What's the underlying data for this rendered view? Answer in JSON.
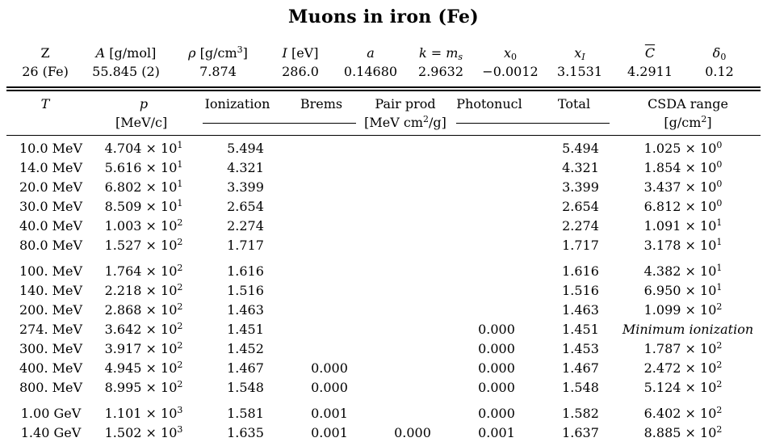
{
  "title": "Muons in iron (Fe)",
  "params": {
    "headers": {
      "z": "Z",
      "a_sym": "A",
      "a_unit": "[g/mol]",
      "rho_sym": "ρ",
      "rho_unit_pre": "[g/cm",
      "rho_unit_exp": "3",
      "rho_unit_post": "]",
      "i_sym": "I",
      "i_unit": "[eV]",
      "a_small": "a",
      "k_sym": "k",
      "k_eq": " = ",
      "k_m": "m",
      "k_sub": "s",
      "x0": "x",
      "x0_sub": "0",
      "xi": "x",
      "xi_sub": "I",
      "cbar": "C",
      "delta": "δ",
      "delta_sub": "0"
    },
    "values": {
      "z": "26 (Fe)",
      "a": "55.845 (2)",
      "rho": "7.874",
      "i": "286.0",
      "a_small": "0.14680",
      "k": "2.9632",
      "x0": "−0.0012",
      "xi": "3.1531",
      "cbar": "4.2911",
      "delta0": "0.12"
    }
  },
  "table": {
    "headers": {
      "t": "T",
      "p": "p",
      "p_unit": "[MeV/c]",
      "ionization": "Ionization",
      "brems": "Brems",
      "pair": "Pair prod",
      "photonucl": "Photonucl",
      "total": "Total",
      "csda": "CSDA range",
      "loss_unit_pre": "[MeV cm",
      "loss_unit_exp": "2",
      "loss_unit_post": "/g]",
      "csda_unit_pre": "[g/cm",
      "csda_unit_exp": "2",
      "csda_unit_post": "]"
    },
    "times": "×",
    "rows": [
      {
        "t": "10.0 MeV",
        "p_m": "4.704",
        "p_e": "1",
        "ion": "5.494",
        "brems": "",
        "pair": "",
        "photo": "",
        "total": "5.494",
        "csda_m": "1.025",
        "csda_e": "0",
        "note": ""
      },
      {
        "t": "14.0 MeV",
        "p_m": "5.616",
        "p_e": "1",
        "ion": "4.321",
        "brems": "",
        "pair": "",
        "photo": "",
        "total": "4.321",
        "csda_m": "1.854",
        "csda_e": "0",
        "note": ""
      },
      {
        "t": "20.0 MeV",
        "p_m": "6.802",
        "p_e": "1",
        "ion": "3.399",
        "brems": "",
        "pair": "",
        "photo": "",
        "total": "3.399",
        "csda_m": "3.437",
        "csda_e": "0",
        "note": ""
      },
      {
        "t": "30.0 MeV",
        "p_m": "8.509",
        "p_e": "1",
        "ion": "2.654",
        "brems": "",
        "pair": "",
        "photo": "",
        "total": "2.654",
        "csda_m": "6.812",
        "csda_e": "0",
        "note": ""
      },
      {
        "t": "40.0 MeV",
        "p_m": "1.003",
        "p_e": "2",
        "ion": "2.274",
        "brems": "",
        "pair": "",
        "photo": "",
        "total": "2.274",
        "csda_m": "1.091",
        "csda_e": "1",
        "note": ""
      },
      {
        "t": "80.0 MeV",
        "p_m": "1.527",
        "p_e": "2",
        "ion": "1.717",
        "brems": "",
        "pair": "",
        "photo": "",
        "total": "1.717",
        "csda_m": "3.178",
        "csda_e": "1",
        "note": ""
      },
      {
        "t": "100. MeV",
        "p_m": "1.764",
        "p_e": "2",
        "ion": "1.616",
        "brems": "",
        "pair": "",
        "photo": "",
        "total": "1.616",
        "csda_m": "4.382",
        "csda_e": "1",
        "note": ""
      },
      {
        "t": "140. MeV",
        "p_m": "2.218",
        "p_e": "2",
        "ion": "1.516",
        "brems": "",
        "pair": "",
        "photo": "",
        "total": "1.516",
        "csda_m": "6.950",
        "csda_e": "1",
        "note": ""
      },
      {
        "t": "200. MeV",
        "p_m": "2.868",
        "p_e": "2",
        "ion": "1.463",
        "brems": "",
        "pair": "",
        "photo": "",
        "total": "1.463",
        "csda_m": "1.099",
        "csda_e": "2",
        "note": ""
      },
      {
        "t": "274. MeV",
        "p_m": "3.642",
        "p_e": "2",
        "ion": "1.451",
        "brems": "",
        "pair": "",
        "photo": "0.000",
        "total": "1.451",
        "csda_m": "",
        "csda_e": "",
        "note": "Minimum ionization"
      },
      {
        "t": "300. MeV",
        "p_m": "3.917",
        "p_e": "2",
        "ion": "1.452",
        "brems": "",
        "pair": "",
        "photo": "0.000",
        "total": "1.453",
        "csda_m": "1.787",
        "csda_e": "2",
        "note": ""
      },
      {
        "t": "400. MeV",
        "p_m": "4.945",
        "p_e": "2",
        "ion": "1.467",
        "brems": "0.000",
        "pair": "",
        "photo": "0.000",
        "total": "1.467",
        "csda_m": "2.472",
        "csda_e": "2",
        "note": ""
      },
      {
        "t": "800. MeV",
        "p_m": "8.995",
        "p_e": "2",
        "ion": "1.548",
        "brems": "0.000",
        "pair": "",
        "photo": "0.000",
        "total": "1.548",
        "csda_m": "5.124",
        "csda_e": "2",
        "note": ""
      },
      {
        "t": "1.00 GeV",
        "p_m": "1.101",
        "p_e": "3",
        "ion": "1.581",
        "brems": "0.001",
        "pair": "",
        "photo": "0.000",
        "total": "1.582",
        "csda_m": "6.402",
        "csda_e": "2",
        "note": ""
      },
      {
        "t": "1.40 GeV",
        "p_m": "1.502",
        "p_e": "3",
        "ion": "1.635",
        "brems": "0.001",
        "pair": "0.000",
        "photo": "0.001",
        "total": "1.637",
        "csda_m": "8.885",
        "csda_e": "2",
        "note": ""
      }
    ]
  }
}
